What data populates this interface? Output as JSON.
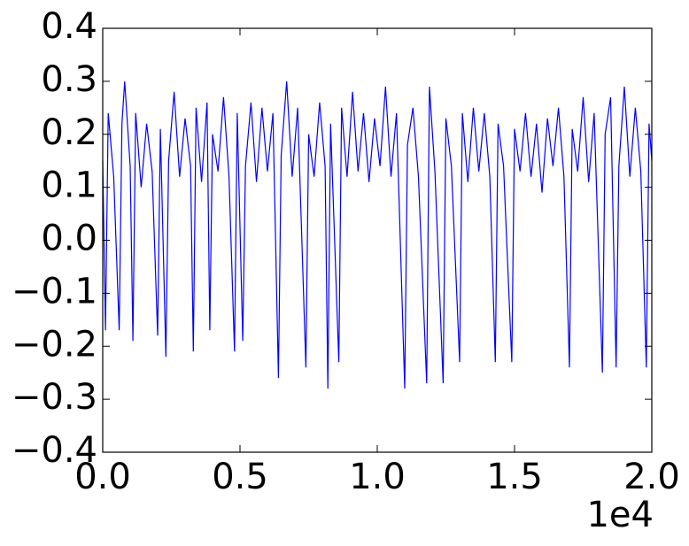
{
  "chart_data": {
    "type": "line",
    "x": [
      0,
      100,
      200,
      400,
      600,
      700,
      800,
      1000,
      1100,
      1200,
      1400,
      1600,
      1800,
      2000,
      2100,
      2300,
      2400,
      2600,
      2800,
      3000,
      3200,
      3300,
      3400,
      3600,
      3800,
      3900,
      4000,
      4200,
      4400,
      4600,
      4800,
      4900,
      5100,
      5200,
      5400,
      5600,
      5800,
      6000,
      6200,
      6400,
      6500,
      6700,
      6900,
      7100,
      7400,
      7500,
      7700,
      7900,
      8100,
      8200,
      8300,
      8600,
      8700,
      8900,
      9100,
      9300,
      9500,
      9700,
      9900,
      10100,
      10300,
      10500,
      10700,
      11000,
      11100,
      11300,
      11500,
      11800,
      11900,
      12100,
      12400,
      12500,
      12700,
      13000,
      13100,
      13300,
      13500,
      13700,
      13900,
      14100,
      14300,
      14400,
      14600,
      14900,
      15000,
      15200,
      15400,
      15600,
      15800,
      16000,
      16200,
      16400,
      16600,
      16800,
      17000,
      17100,
      17300,
      17500,
      17700,
      17900,
      18200,
      18300,
      18500,
      18700,
      18800,
      19000,
      19200,
      19400,
      19600,
      19800,
      19900,
      20000
    ],
    "series": [
      {
        "color": "#0000ff",
        "values": [
          0.15,
          -0.17,
          0.24,
          0.12,
          -0.17,
          0.22,
          0.3,
          0.14,
          -0.19,
          0.24,
          0.1,
          0.22,
          0.13,
          -0.18,
          0.21,
          -0.22,
          0.15,
          0.28,
          0.12,
          0.23,
          0.14,
          -0.21,
          0.25,
          0.11,
          0.26,
          -0.17,
          0.2,
          0.13,
          0.27,
          0.12,
          -0.21,
          0.24,
          -0.19,
          0.14,
          0.26,
          0.11,
          0.25,
          0.13,
          0.24,
          -0.26,
          0.16,
          0.3,
          0.12,
          0.25,
          -0.24,
          0.2,
          0.12,
          0.26,
          0.14,
          -0.28,
          0.22,
          -0.23,
          0.25,
          0.12,
          0.28,
          0.13,
          0.24,
          0.11,
          0.23,
          0.14,
          0.29,
          0.12,
          0.24,
          -0.28,
          0.18,
          0.25,
          0.12,
          -0.27,
          0.29,
          0.13,
          -0.27,
          0.23,
          0.14,
          -0.23,
          0.24,
          0.11,
          0.25,
          0.13,
          0.24,
          0.12,
          -0.23,
          0.22,
          0.14,
          -0.23,
          0.21,
          0.13,
          0.24,
          0.12,
          0.22,
          0.09,
          0.23,
          0.14,
          0.25,
          0.12,
          -0.24,
          0.21,
          0.13,
          0.27,
          0.11,
          0.24,
          -0.25,
          0.2,
          0.27,
          -0.24,
          0.14,
          0.29,
          0.12,
          0.25,
          0.13,
          -0.24,
          0.22,
          0.15
        ]
      }
    ],
    "xlim": [
      0,
      20000
    ],
    "xticks": [
      {
        "value": 0,
        "label": "0.0"
      },
      {
        "value": 5000,
        "label": "0.5"
      },
      {
        "value": 10000,
        "label": "1.0"
      },
      {
        "value": 15000,
        "label": "1.5"
      },
      {
        "value": 20000,
        "label": "2.0"
      }
    ],
    "x_offset_label": "1e4",
    "ylim": [
      -0.4,
      0.4
    ],
    "yticks": [
      {
        "value": -0.4,
        "label": "−0.4"
      },
      {
        "value": -0.3,
        "label": "−0.3"
      },
      {
        "value": -0.2,
        "label": "−0.2"
      },
      {
        "value": -0.1,
        "label": "−0.1"
      },
      {
        "value": 0,
        "label": "0.0"
      },
      0.1,
      0.2,
      0.3,
      0.4
    ],
    "grid": false
  }
}
